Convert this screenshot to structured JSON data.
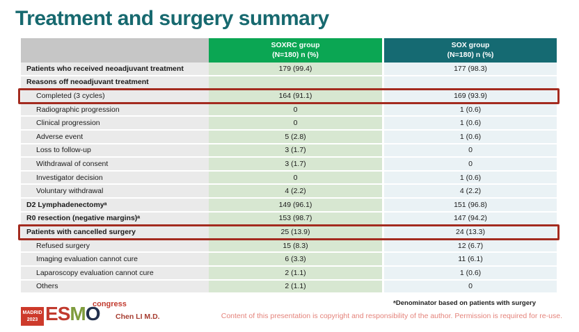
{
  "slide_title": "Treatment and surgery summary",
  "table": {
    "columns": [
      {
        "id": "soxrc",
        "line1": "SOXRC group",
        "line2": "(N=180)  n (%)"
      },
      {
        "id": "sox",
        "line1": "SOX group",
        "line2": "(N=180)  n (%)"
      }
    ],
    "rows": [
      {
        "label": "Patients who received neoadjuvant treatment",
        "soxrc": "179 (99.4)",
        "sox": "177 (98.3)",
        "bold": true
      },
      {
        "label": "Reasons off neoadjuvant treatment",
        "soxrc": "",
        "sox": "",
        "bold": true
      },
      {
        "label": "Completed (3 cycles)",
        "soxrc": "164 (91.1)",
        "sox": "169 (93.9)",
        "indent": true,
        "highlight": true
      },
      {
        "label": "Radiographic progression",
        "soxrc": "0",
        "sox": "1 (0.6)",
        "indent": true
      },
      {
        "label": "Clinical progression",
        "soxrc": "0",
        "sox": "1 (0.6)",
        "indent": true
      },
      {
        "label": "Adverse event",
        "soxrc": "5 (2.8)",
        "sox": "1 (0.6)",
        "indent": true
      },
      {
        "label": "Loss to follow-up",
        "soxrc": "3 (1.7)",
        "sox": "0",
        "indent": true
      },
      {
        "label": "Withdrawal of consent",
        "soxrc": "3 (1.7)",
        "sox": "0",
        "indent": true
      },
      {
        "label": "Investigator decision",
        "soxrc": "0",
        "sox": "1 (0.6)",
        "indent": true
      },
      {
        "label": "Voluntary withdrawal",
        "soxrc": "4 (2.2)",
        "sox": "4 (2.2)",
        "indent": true
      },
      {
        "label": "D2 Lymphadenectomyᵃ",
        "soxrc": "149 (96.1)",
        "sox": "151 (96.8)",
        "bold": true
      },
      {
        "label": "R0 resection (negative margins)ᵃ",
        "soxrc": "153 (98.7)",
        "sox": "147 (94.2)",
        "bold": true
      },
      {
        "label": "Patients with cancelled surgery",
        "soxrc": "25 (13.9)",
        "sox": "24 (13.3)",
        "bold": true,
        "highlight": true
      },
      {
        "label": "Refused surgery",
        "soxrc": "15 (8.3)",
        "sox": "12 (6.7)",
        "indent": true
      },
      {
        "label": "Imaging evaluation cannot cure",
        "soxrc": "6 (3.3)",
        "sox": "11 (6.1)",
        "indent": true
      },
      {
        "label": "Laparoscopy evaluation cannot cure",
        "soxrc": "2 (1.1)",
        "sox": "1 (0.6)",
        "indent": true
      },
      {
        "label": "Others",
        "soxrc": "2 (1.1)",
        "sox": "0",
        "indent": true
      }
    ]
  },
  "footer": {
    "footnote": "ᵃDenominator based on patients with surgery",
    "author": "Chen LI M.D.",
    "copyright": "Content of this presentation is copyright and responsibility of the author. Permission is required for re-use.",
    "logo": {
      "badge_line1": "MADRID",
      "badge_line2": "2023",
      "letter_e": "E",
      "letter_s": "S",
      "letter_m": "M",
      "letter_o": "O",
      "congress": "congress"
    }
  },
  "colors": {
    "title_teal": "#17696f",
    "header_green": "#0ba653",
    "header_teal": "#156a72",
    "header_gray": "#c6c6c6",
    "label_cell_bg": "#eaeaea",
    "soxrc_cell_bg": "#d7e7d1",
    "sox_cell_bg": "#eaf2f5",
    "highlight_red": "#a32b1f",
    "author_red": "#a63c30",
    "copyright_pink": "#e4837b",
    "logo_red": "#c13a2e",
    "logo_green": "#7f9c3d",
    "logo_navy": "#22304d"
  }
}
